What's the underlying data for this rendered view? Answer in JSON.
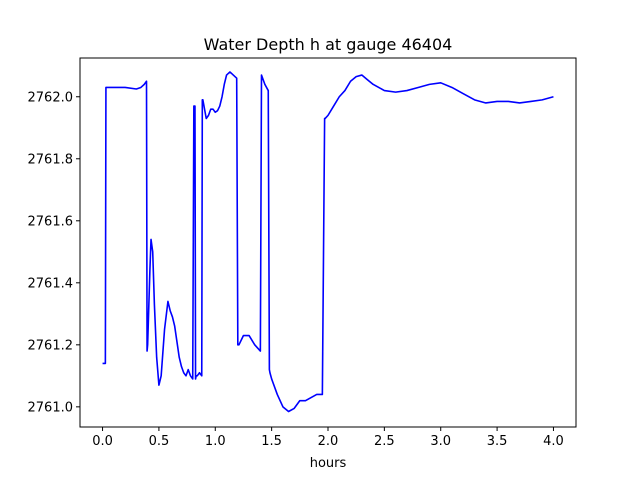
{
  "chart_data": {
    "type": "line",
    "title": "Water Depth h at gauge 46404",
    "xlabel": "hours",
    "ylabel": "",
    "xlim": [
      -0.2,
      4.2
    ],
    "ylim": [
      2760.935,
      2762.125
    ],
    "xticks": [
      0.0,
      0.5,
      1.0,
      1.5,
      2.0,
      2.5,
      3.0,
      3.5,
      4.0
    ],
    "xtick_labels": [
      "0.0",
      "0.5",
      "1.0",
      "1.5",
      "2.0",
      "2.5",
      "3.0",
      "3.5",
      "4.0"
    ],
    "yticks": [
      2761.0,
      2761.2,
      2761.4,
      2761.6,
      2761.8,
      2762.0
    ],
    "ytick_labels": [
      "2761.0",
      "2761.2",
      "2761.4",
      "2761.6",
      "2761.8",
      "2762.0"
    ],
    "grid": false,
    "color": "#0000ff",
    "series": [
      {
        "x": [
          0.0,
          0.025,
          0.03,
          0.1,
          0.2,
          0.3,
          0.34,
          0.37,
          0.39,
          0.395,
          0.4,
          0.42,
          0.43,
          0.445,
          0.46,
          0.48,
          0.5,
          0.52,
          0.55,
          0.58,
          0.6,
          0.62,
          0.64,
          0.66,
          0.68,
          0.7,
          0.72,
          0.74,
          0.76,
          0.78,
          0.8,
          0.81,
          0.815,
          0.82,
          0.825,
          0.83,
          0.84,
          0.86,
          0.88,
          0.885,
          0.89,
          0.895,
          0.92,
          0.94,
          0.96,
          0.98,
          1.0,
          1.02,
          1.04,
          1.06,
          1.08,
          1.1,
          1.13,
          1.16,
          1.19,
          1.2,
          1.205,
          1.21,
          1.25,
          1.3,
          1.35,
          1.4,
          1.41,
          1.415,
          1.44,
          1.47,
          1.48,
          1.485,
          1.5,
          1.55,
          1.6,
          1.65,
          1.7,
          1.75,
          1.8,
          1.85,
          1.9,
          1.95,
          1.97,
          1.975,
          2.0,
          2.05,
          2.1,
          2.15,
          2.2,
          2.25,
          2.3,
          2.35,
          2.4,
          2.45,
          2.5,
          2.6,
          2.7,
          2.8,
          2.9,
          3.0,
          3.1,
          3.2,
          3.3,
          3.4,
          3.5,
          3.6,
          3.7,
          3.8,
          3.9,
          4.0
        ],
        "y": [
          2761.14,
          2761.14,
          2762.03,
          2762.03,
          2762.03,
          2762.025,
          2762.03,
          2762.04,
          2762.05,
          2761.18,
          2761.2,
          2761.44,
          2761.54,
          2761.5,
          2761.33,
          2761.16,
          2761.07,
          2761.1,
          2761.25,
          2761.34,
          2761.31,
          2761.29,
          2761.26,
          2761.21,
          2761.16,
          2761.13,
          2761.11,
          2761.1,
          2761.12,
          2761.1,
          2761.09,
          2761.97,
          2761.97,
          2761.97,
          2761.09,
          2761.1,
          2761.1,
          2761.11,
          2761.1,
          2761.99,
          2761.99,
          2761.98,
          2761.93,
          2761.94,
          2761.96,
          2761.96,
          2761.95,
          2761.955,
          2761.97,
          2762.0,
          2762.04,
          2762.07,
          2762.08,
          2762.07,
          2762.06,
          2761.2,
          2761.2,
          2761.2,
          2761.23,
          2761.23,
          2761.2,
          2761.18,
          2762.07,
          2762.065,
          2762.04,
          2762.02,
          2761.12,
          2761.11,
          2761.09,
          2761.04,
          2761.0,
          2760.985,
          2760.995,
          2761.02,
          2761.02,
          2761.03,
          2761.04,
          2761.04,
          2761.93,
          2761.93,
          2761.94,
          2761.97,
          2762.0,
          2762.02,
          2762.05,
          2762.065,
          2762.07,
          2762.055,
          2762.04,
          2762.03,
          2762.02,
          2762.015,
          2762.02,
          2762.03,
          2762.04,
          2762.045,
          2762.03,
          2762.01,
          2761.99,
          2761.98,
          2761.985,
          2761.985,
          2761.98,
          2761.985,
          2761.99,
          2762.0
        ]
      }
    ]
  }
}
